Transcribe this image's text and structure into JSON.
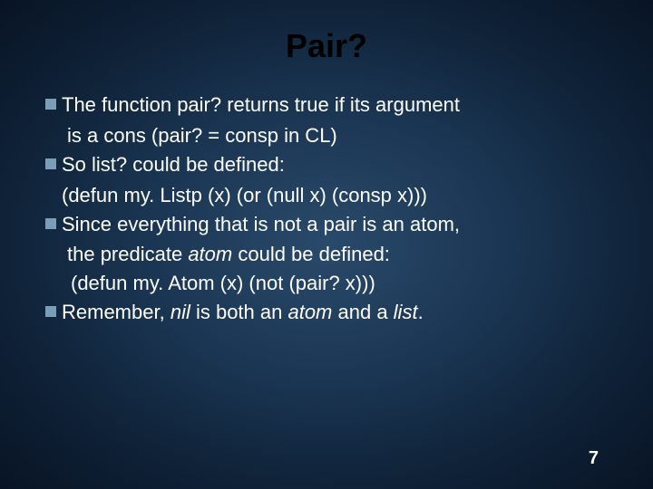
{
  "slide": {
    "title": "Pair?",
    "bullets": [
      {
        "line1": "The function pair? returns true if its argument",
        "line2": "is a cons (pair? = consp in CL)"
      },
      {
        "line1": "So list? could be defined:",
        "code": "(defun   my. Listp (x)  (or (null x)  (consp x)))"
      },
      {
        "line1": "Since everything that is not a pair is an atom,",
        "line2a": "the predicate ",
        "line2_italic": "atom ",
        "line2b": "could be defined:",
        "code": "(defun my. Atom (x)   (not  (pair?   x)))"
      },
      {
        "line1a": "Remember,   ",
        "line1_italic1": "nil ",
        "line1b": "is both an ",
        "line1_italic2": "atom ",
        "line1c": "and a ",
        "line1_italic3": "list",
        "line1d": "."
      }
    ],
    "page_number": "7"
  },
  "style": {
    "background_gradient": [
      "#2a4a6b",
      "#1a3552",
      "#0f2238",
      "#081424"
    ],
    "title_color": "#000000",
    "text_color": "#ffffff",
    "bullet_color": "#7a9db8",
    "title_fontsize": 36,
    "body_fontsize": 22,
    "font_family": "Verdana"
  }
}
